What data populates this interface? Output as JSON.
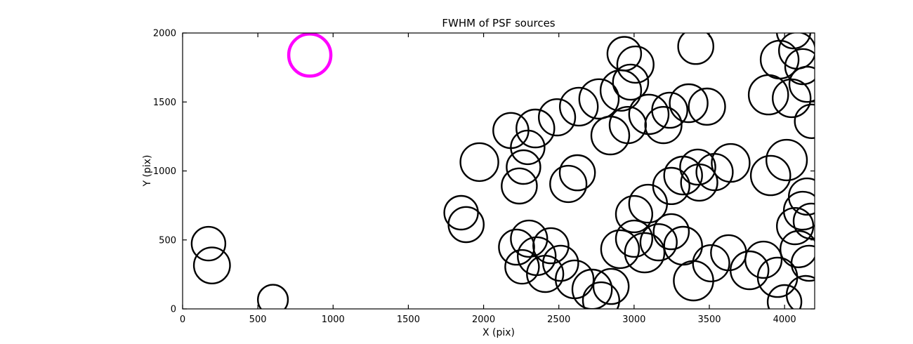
{
  "chart_data": {
    "type": "scatter",
    "title": "FWHM of PSF sources",
    "xlabel": "X (pix)",
    "ylabel": "Y (pix)",
    "xlim": [
      0,
      4200
    ],
    "ylim": [
      0,
      2000
    ],
    "xticks": [
      0,
      500,
      1000,
      1500,
      2000,
      2500,
      3000,
      3500,
      4000
    ],
    "yticks": [
      0,
      500,
      1000,
      1500,
      2000
    ],
    "grid": false,
    "legend": "none",
    "marker_style": "open-circle",
    "colors": {
      "default": "#000000",
      "highlight": "#ff00ff",
      "frame": "#000000"
    },
    "highlight_point": {
      "x": 845,
      "y": 1840,
      "r": 140
    },
    "points": [
      {
        "x": 172,
        "y": 473,
        "r": 112
      },
      {
        "x": 195,
        "y": 315,
        "r": 120
      },
      {
        "x": 600,
        "y": 66,
        "r": 100
      },
      {
        "x": 1972,
        "y": 1064,
        "r": 126
      },
      {
        "x": 1851,
        "y": 697,
        "r": 112
      },
      {
        "x": 1884,
        "y": 611,
        "r": 117
      },
      {
        "x": 2181,
        "y": 1293,
        "r": 117
      },
      {
        "x": 2344,
        "y": 1308,
        "r": 126
      },
      {
        "x": 2293,
        "y": 1171,
        "r": 112
      },
      {
        "x": 2488,
        "y": 1389,
        "r": 121
      },
      {
        "x": 2633,
        "y": 1466,
        "r": 126
      },
      {
        "x": 2265,
        "y": 1028,
        "r": 112
      },
      {
        "x": 2237,
        "y": 891,
        "r": 117
      },
      {
        "x": 2563,
        "y": 906,
        "r": 121
      },
      {
        "x": 2623,
        "y": 987,
        "r": 117
      },
      {
        "x": 2767,
        "y": 1522,
        "r": 131
      },
      {
        "x": 2912,
        "y": 1583,
        "r": 135
      },
      {
        "x": 3009,
        "y": 1771,
        "r": 121
      },
      {
        "x": 2935,
        "y": 1850,
        "r": 112
      },
      {
        "x": 2977,
        "y": 1644,
        "r": 117
      },
      {
        "x": 2842,
        "y": 1257,
        "r": 126
      },
      {
        "x": 2958,
        "y": 1333,
        "r": 121
      },
      {
        "x": 3098,
        "y": 1410,
        "r": 131
      },
      {
        "x": 3195,
        "y": 1333,
        "r": 121
      },
      {
        "x": 3237,
        "y": 1440,
        "r": 117
      },
      {
        "x": 3363,
        "y": 1491,
        "r": 126
      },
      {
        "x": 3484,
        "y": 1466,
        "r": 121
      },
      {
        "x": 3410,
        "y": 1903,
        "r": 117
      },
      {
        "x": 3967,
        "y": 1807,
        "r": 126
      },
      {
        "x": 4084,
        "y": 1873,
        "r": 121
      },
      {
        "x": 4121,
        "y": 1756,
        "r": 117
      },
      {
        "x": 4060,
        "y": 2010,
        "r": 112
      },
      {
        "x": 3893,
        "y": 1552,
        "r": 131
      },
      {
        "x": 4047,
        "y": 1527,
        "r": 126
      },
      {
        "x": 4149,
        "y": 1628,
        "r": 117
      },
      {
        "x": 4180,
        "y": 1360,
        "r": 112
      },
      {
        "x": 3642,
        "y": 1058,
        "r": 126
      },
      {
        "x": 3535,
        "y": 992,
        "r": 121
      },
      {
        "x": 3423,
        "y": 1028,
        "r": 117
      },
      {
        "x": 4014,
        "y": 1079,
        "r": 135
      },
      {
        "x": 4149,
        "y": 814,
        "r": 121
      },
      {
        "x": 4121,
        "y": 712,
        "r": 126
      },
      {
        "x": 4177,
        "y": 636,
        "r": 117
      },
      {
        "x": 4070,
        "y": 600,
        "r": 121
      },
      {
        "x": 2219,
        "y": 448,
        "r": 117
      },
      {
        "x": 2302,
        "y": 509,
        "r": 121
      },
      {
        "x": 2353,
        "y": 382,
        "r": 126
      },
      {
        "x": 2447,
        "y": 458,
        "r": 117
      },
      {
        "x": 2256,
        "y": 305,
        "r": 112
      },
      {
        "x": 2409,
        "y": 254,
        "r": 121
      },
      {
        "x": 2512,
        "y": 331,
        "r": 117
      },
      {
        "x": 2605,
        "y": 214,
        "r": 126
      },
      {
        "x": 2721,
        "y": 142,
        "r": 131
      },
      {
        "x": 2781,
        "y": 61,
        "r": 121
      },
      {
        "x": 2847,
        "y": 163,
        "r": 117
      },
      {
        "x": 2907,
        "y": 433,
        "r": 126
      },
      {
        "x": 3000,
        "y": 509,
        "r": 121
      },
      {
        "x": 3070,
        "y": 407,
        "r": 131
      },
      {
        "x": 3163,
        "y": 483,
        "r": 121
      },
      {
        "x": 3247,
        "y": 560,
        "r": 117
      },
      {
        "x": 3326,
        "y": 458,
        "r": 126
      },
      {
        "x": 3395,
        "y": 204,
        "r": 131
      },
      {
        "x": 3512,
        "y": 331,
        "r": 121
      },
      {
        "x": 3628,
        "y": 407,
        "r": 117
      },
      {
        "x": 3767,
        "y": 280,
        "r": 126
      },
      {
        "x": 3860,
        "y": 356,
        "r": 121
      },
      {
        "x": 3953,
        "y": 229,
        "r": 131
      },
      {
        "x": 4093,
        "y": 433,
        "r": 121
      },
      {
        "x": 4163,
        "y": 331,
        "r": 117
      },
      {
        "x": 4140,
        "y": 102,
        "r": 126
      },
      {
        "x": 4000,
        "y": 51,
        "r": 112
      },
      {
        "x": 3000,
        "y": 687,
        "r": 121
      },
      {
        "x": 3093,
        "y": 763,
        "r": 126
      },
      {
        "x": 3247,
        "y": 891,
        "r": 121
      },
      {
        "x": 3326,
        "y": 967,
        "r": 126
      },
      {
        "x": 3433,
        "y": 916,
        "r": 121
      },
      {
        "x": 3907,
        "y": 967,
        "r": 131
      }
    ]
  }
}
